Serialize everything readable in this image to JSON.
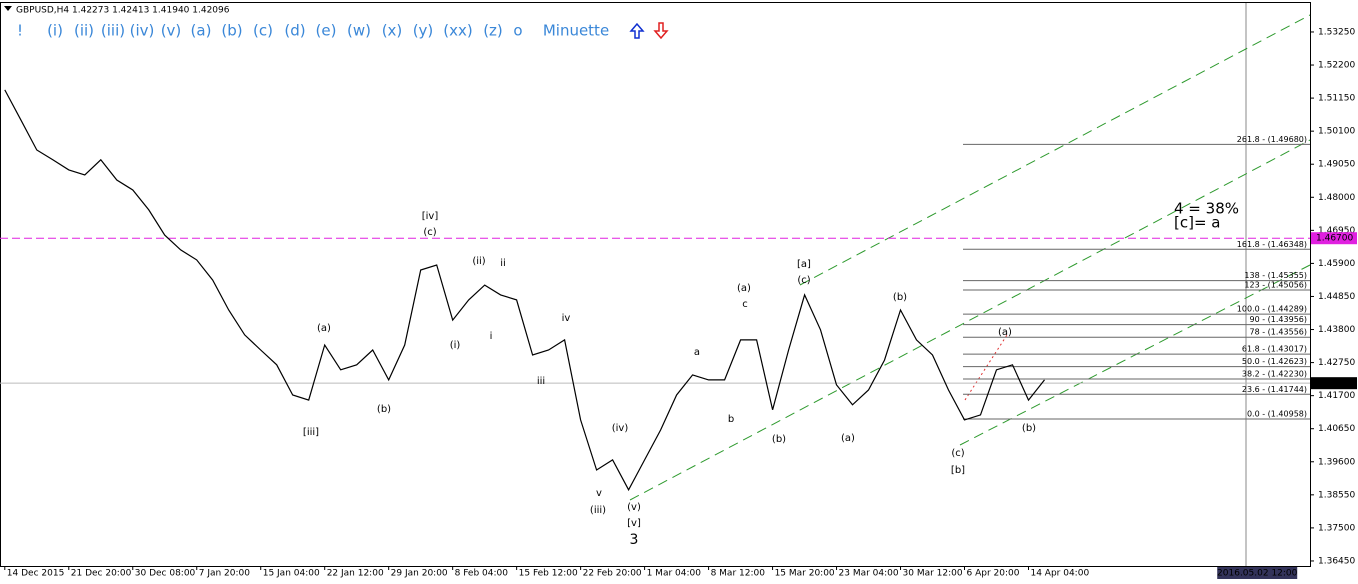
{
  "chart_data": {
    "type": "line",
    "title": "GBPUSD,H4  1.42273 1.42413 1.41940 1.42096",
    "values": [
      1.5141,
      1.5046,
      1.495,
      1.4919,
      1.4887,
      1.4871,
      1.4919,
      1.4855,
      1.4823,
      1.476,
      1.468,
      1.4633,
      1.4601,
      1.4537,
      1.4442,
      1.4363,
      1.4315,
      1.4268,
      1.4172,
      1.4156,
      1.4331,
      1.4252,
      1.4268,
      1.4315,
      1.422,
      1.4331,
      1.4569,
      1.4585,
      1.441,
      1.4474,
      1.4521,
      1.449,
      1.4474,
      1.4299,
      1.4315,
      1.4347,
      1.4093,
      1.3934,
      1.3966,
      1.3871,
      1.3966,
      1.4061,
      1.4172,
      1.4236,
      1.422,
      1.422,
      1.4347,
      1.4347,
      1.4125,
      1.4315,
      1.449,
      1.4379,
      1.4204,
      1.4141,
      1.4188,
      1.4283,
      1.4442,
      1.4347,
      1.4299,
      1.4188,
      1.4093,
      1.4109,
      1.4252,
      1.4268,
      1.4156,
      1.422
    ],
    "color": "#000000",
    "xlim": [
      -0.3,
      81.6
    ],
    "xticks": [
      {
        "value": 0,
        "label": "14 Dec 2015"
      },
      {
        "value": 4,
        "label": "21 Dec 20:00"
      },
      {
        "value": 8,
        "label": "30 Dec 08:00"
      },
      {
        "value": 12,
        "label": "7 Jan 20:00"
      },
      {
        "value": 16,
        "label": "15 Jan 04:00"
      },
      {
        "value": 20,
        "label": "22 Jan 12:00"
      },
      {
        "value": 24,
        "label": "29 Jan 20:00"
      },
      {
        "value": 28,
        "label": "8 Feb 04:00"
      },
      {
        "value": 32,
        "label": "15 Feb 12:00"
      },
      {
        "value": 36,
        "label": "22 Feb 20:00"
      },
      {
        "value": 40,
        "label": "1 Mar 04:00"
      },
      {
        "value": 44,
        "label": "8 Mar 12:00"
      },
      {
        "value": 48,
        "label": "15 Mar 20:00"
      },
      {
        "value": 52,
        "label": "23 Mar 04:00"
      },
      {
        "value": 56,
        "label": "30 Mar 12:00"
      },
      {
        "value": 60,
        "label": "6 Apr 20:00"
      },
      {
        "value": 64,
        "label": "14 Apr 04:00"
      },
      {
        "value": 78.3,
        "label": "2016.05.02 12:00"
      }
    ],
    "ylim": [
      1.3629,
      1.5417
    ],
    "yticks": [
      {
        "value": 1.5325,
        "label": "1.53250"
      },
      {
        "value": 1.522,
        "label": "1.52200"
      },
      {
        "value": 1.5115,
        "label": "1.51150"
      },
      {
        "value": 1.501,
        "label": "1.50100"
      },
      {
        "value": 1.4905,
        "label": "1.49050"
      },
      {
        "value": 1.48,
        "label": "1.48000"
      },
      {
        "value": 1.4695,
        "label": "1.46950"
      },
      {
        "value": 1.459,
        "label": "1.45900"
      },
      {
        "value": 1.4485,
        "label": "1.44850"
      },
      {
        "value": 1.438,
        "label": "1.43800"
      },
      {
        "value": 1.4275,
        "label": "1.42750"
      },
      {
        "value": 1.417,
        "label": "1.41700"
      },
      {
        "value": 1.4065,
        "label": "1.40650"
      },
      {
        "value": 1.396,
        "label": "1.39600"
      },
      {
        "value": 1.3855,
        "label": "1.38550"
      },
      {
        "value": 1.375,
        "label": "1.37500"
      },
      {
        "value": 1.3645,
        "label": "1.36450"
      }
    ],
    "current_price": {
      "value": 1.42096,
      "label": "1.42096"
    },
    "level": {
      "value": 1.467,
      "label": "1.46700",
      "color": "#e020e0"
    },
    "fib_levels": [
      {
        "value": 1.4968,
        "label": "261.8 - (1.49680)"
      },
      {
        "value": 1.46348,
        "label": "161.8 - (1.46348)"
      },
      {
        "value": 1.45355,
        "label": "138 - (1.45355)"
      },
      {
        "value": 1.45056,
        "label": "123 - (1.45056)"
      },
      {
        "value": 1.44289,
        "label": "100.0 - (1.44289)"
      },
      {
        "value": 1.43956,
        "label": "90 - (1.43956)"
      },
      {
        "value": 1.43556,
        "label": "78 - (1.43556)"
      },
      {
        "value": 1.43017,
        "label": "61.8 - (1.43017)"
      },
      {
        "value": 1.42623,
        "label": "50.0 - (1.42623)"
      },
      {
        "value": 1.4223,
        "label": "38.2 - (1.42230)"
      },
      {
        "value": 1.41744,
        "label": "23.6 - (1.41744)"
      },
      {
        "value": 1.40958,
        "label": "0.0 - (1.40958)"
      }
    ],
    "wave_labels": [
      "[iv]",
      "(c)",
      "(a)",
      "(b)",
      "[iii]",
      "(i)",
      "(ii)",
      "ii",
      "i",
      "iii",
      "iv",
      "v",
      "(iii)",
      "(iv)",
      "(v)",
      "[v]",
      "3",
      "(a)",
      "c",
      "a",
      "b",
      "(b)",
      "[a]",
      "(c)",
      "(a)",
      "(b)",
      "(c)",
      "[b]",
      "(a)",
      "(b)"
    ],
    "notes": [
      "4 = 38%",
      "[c]= a"
    ]
  },
  "toolbar": [
    "!",
    "(i)",
    "(ii)",
    "(iii)",
    "(iv)",
    "(v)",
    "(a)",
    "(b)",
    "(c)",
    "(d)",
    "(e)",
    "(w)",
    "(x)",
    "(y)",
    "(xx)",
    "(z)",
    "o",
    "Minuette"
  ]
}
